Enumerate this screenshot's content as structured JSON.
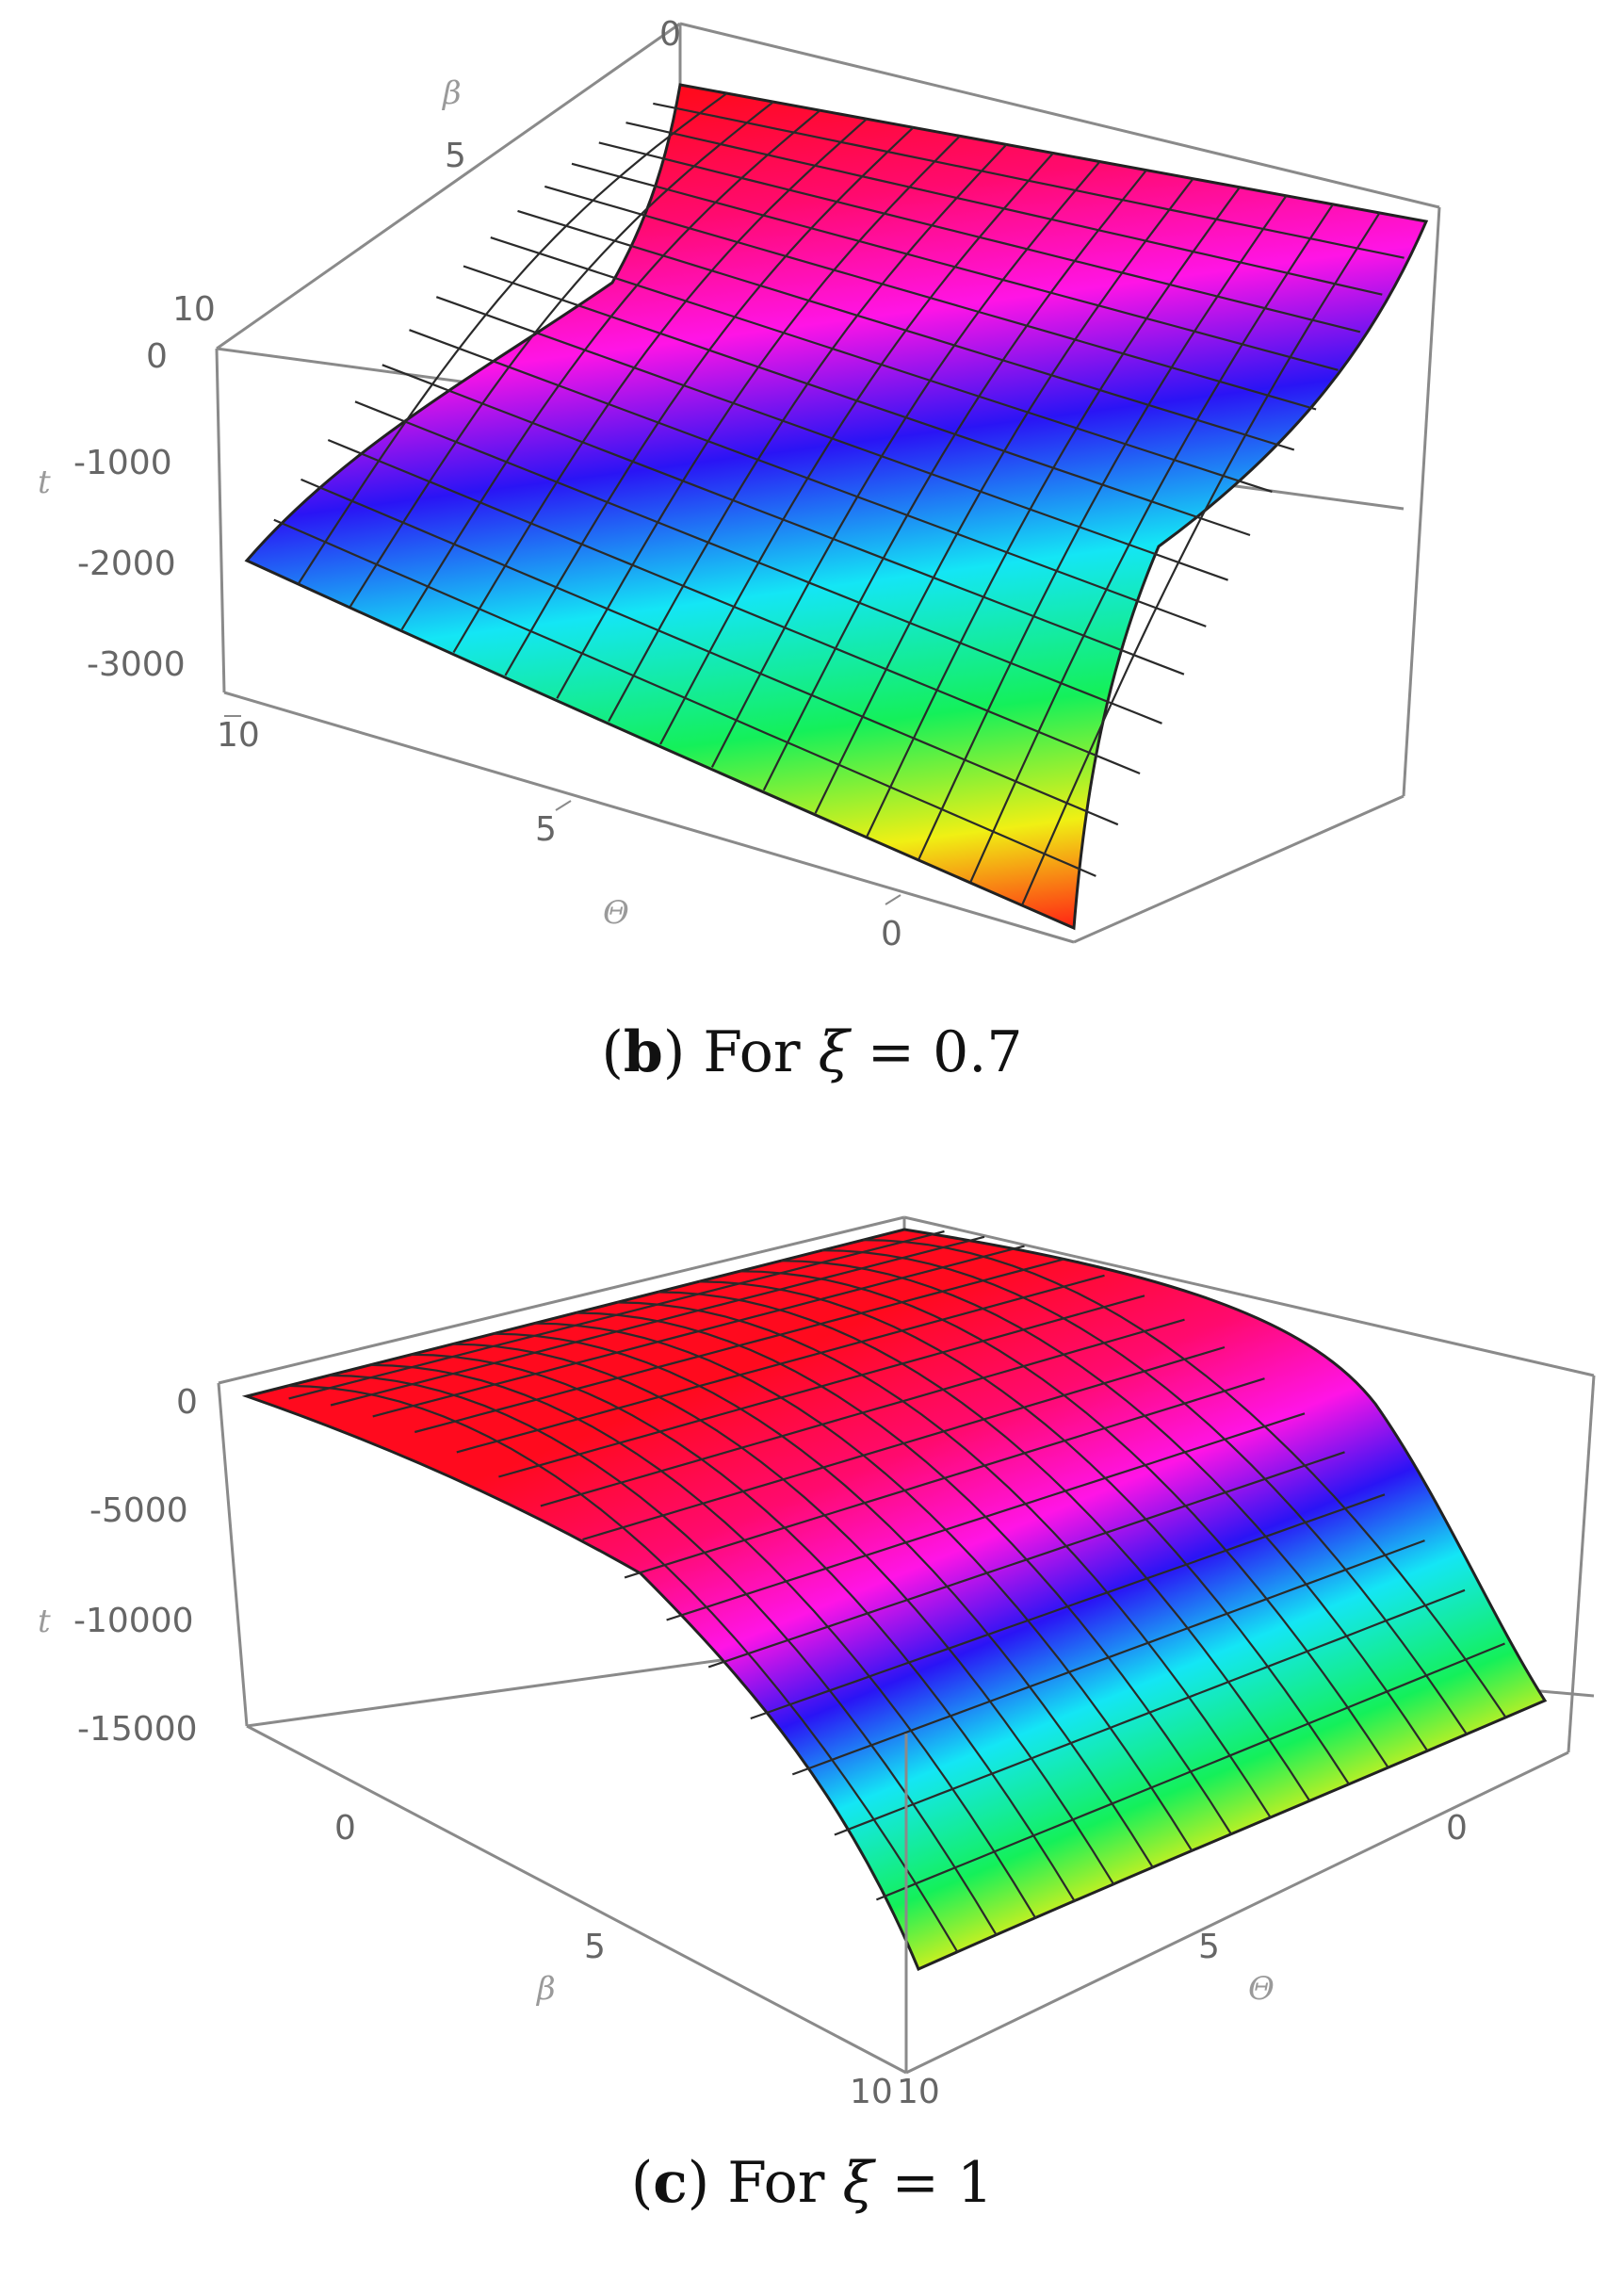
{
  "chart_data": [
    {
      "type": "surface3d",
      "panel_label": "b",
      "caption_prefix": "For",
      "caption_symbol": "ξ",
      "caption_eq": "= 0.7",
      "axis_names": {
        "x": "Θ",
        "y": "β",
        "z": "t"
      },
      "x_ticks": [
        "10",
        "5",
        "0"
      ],
      "y_ticks": [
        "0",
        "5",
        "10"
      ],
      "z_ticks": [
        "0",
        "-1000",
        "-2000",
        "-3000"
      ],
      "xlim": [
        0,
        12
      ],
      "ylim": [
        0,
        12
      ],
      "zlim": [
        -3300,
        200
      ],
      "colormap": "hue (red at top, through magenta, blue, cyan, green, yellow to orange-red at bottom)"
    },
    {
      "type": "surface3d",
      "panel_label": "c",
      "caption_prefix": "For",
      "caption_symbol": "ξ",
      "caption_eq": "= 1",
      "axis_names": {
        "x": "Θ",
        "y": "β",
        "z": "t"
      },
      "x_ticks": [
        "0",
        "5",
        "10"
      ],
      "y_ticks": [
        "0",
        "5",
        "10"
      ],
      "z_ticks": [
        "0",
        "-5000",
        "-10000",
        "-15000"
      ],
      "xlim": [
        0,
        12
      ],
      "ylim": [
        0,
        12
      ],
      "zlim": [
        -16500,
        500
      ],
      "colormap": "hue (red at top, through magenta, blue, cyan, green, yellow to orange-red at bottom)"
    }
  ]
}
